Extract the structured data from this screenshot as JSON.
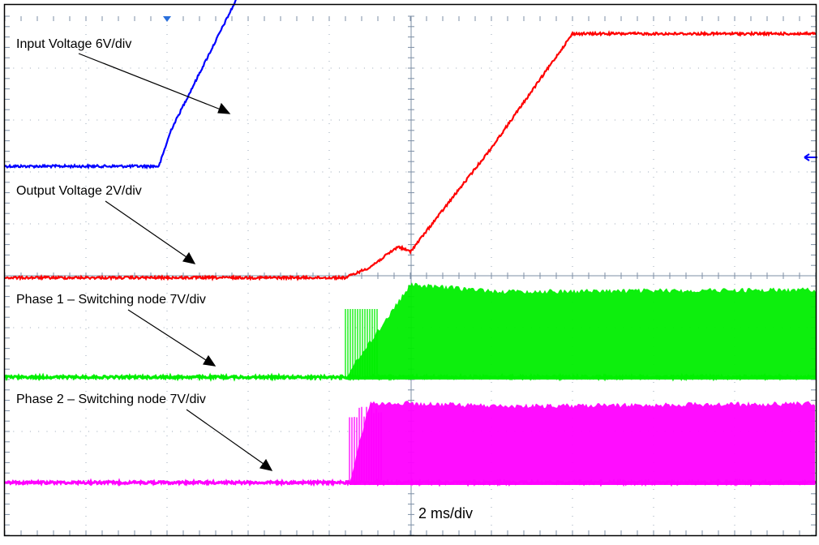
{
  "chart_data": {
    "type": "line",
    "x_unit": "ms",
    "x_range": [
      -10,
      10
    ],
    "grid": true,
    "timebase_label": "2 ms/div",
    "series": [
      {
        "name": "Input Voltage 6V/div",
        "color": "#0000ff",
        "noise": 1.5,
        "points": [
          [
            -10,
            6.0
          ],
          [
            -6.2,
            6.0
          ],
          [
            -5.9,
            6.7
          ],
          [
            -3.4,
            10.6
          ],
          [
            -1.2,
            10.6
          ],
          [
            2.2,
            9.4
          ],
          [
            2.5,
            9.6
          ],
          [
            10,
            9.6
          ]
        ]
      },
      {
        "name": "Output Voltage 2V/div",
        "color": "#ff0000",
        "noise": 1.5,
        "points": [
          [
            -10,
            -0.1
          ],
          [
            -1.6,
            -0.1
          ],
          [
            -1.0,
            0.1
          ],
          [
            -0.3,
            0.5
          ],
          [
            0.0,
            0.4
          ],
          [
            2.0,
            2.4
          ],
          [
            4.0,
            4.6
          ],
          [
            10,
            4.6
          ]
        ]
      },
      {
        "name": "Phase 1 – Switching node 7V/div",
        "color": "#00ee00",
        "noise": 1.5,
        "envelope": [
          [
            -10,
            0
          ],
          [
            -1.6,
            0
          ],
          [
            0.0,
            0.95
          ],
          [
            2.3,
            0.88
          ],
          [
            10,
            0.9
          ]
        ]
      },
      {
        "name": "Phase 2 – Switching node 7V/div",
        "color": "#ff00ff",
        "noise": 1.5,
        "envelope": [
          [
            -10,
            0
          ],
          [
            -1.5,
            0
          ],
          [
            -1.0,
            0.85
          ],
          [
            0.0,
            0.85
          ],
          [
            2.3,
            0.82
          ],
          [
            10,
            0.85
          ]
        ]
      }
    ]
  },
  "labels": {
    "input": "Input Voltage 6V/div",
    "output": "Output Voltage 2V/div",
    "phase1": "Phase 1 – Switching node 7V/div",
    "phase2": "Phase 2 – Switching node 7V/div"
  }
}
